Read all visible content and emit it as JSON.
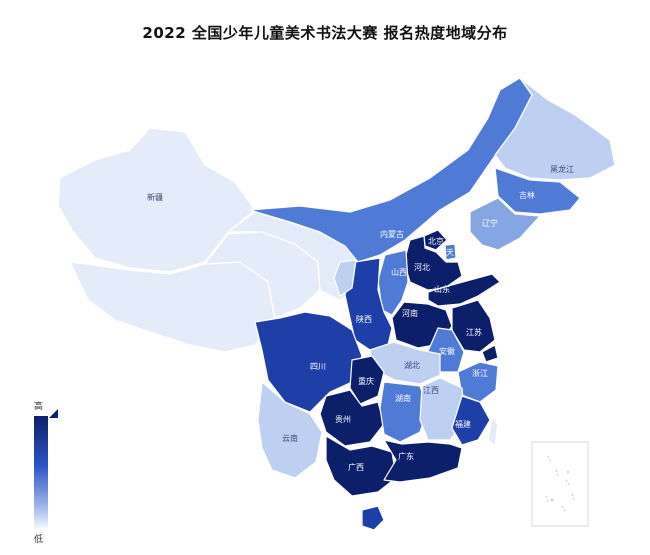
{
  "title": "2022 全国少年儿童美术书法大赛 报名热度地域分布",
  "legend": {
    "high": "高",
    "low": "低"
  },
  "colors": {
    "level1": "#0b1f6b",
    "level2": "#1f3fa8",
    "level3": "#4f7ad6",
    "level4": "#86a6e3",
    "level5": "#bdd0f2",
    "level6": "#e4ecfa",
    "border": "#ffffff"
  },
  "provinces": [
    {
      "id": "xinjiang",
      "label": "新疆",
      "level": 6
    },
    {
      "id": "xizang",
      "label": "",
      "level": 6
    },
    {
      "id": "qinghai",
      "label": "",
      "level": 6
    },
    {
      "id": "gansu",
      "label": "",
      "level": 6
    },
    {
      "id": "neimenggu",
      "label": "内蒙古",
      "level": 3
    },
    {
      "id": "heilongjiang",
      "label": "黑龙江",
      "level": 5
    },
    {
      "id": "jilin",
      "label": "吉林",
      "level": 3
    },
    {
      "id": "liaoning",
      "label": "辽宁",
      "level": 4
    },
    {
      "id": "beijing",
      "label": "北京",
      "level": 1
    },
    {
      "id": "tianjin",
      "label": "天",
      "level": 3
    },
    {
      "id": "hebei",
      "label": "河北",
      "level": 1
    },
    {
      "id": "shanxi",
      "label": "山西",
      "level": 3
    },
    {
      "id": "shandong",
      "label": "山东",
      "level": 1
    },
    {
      "id": "henan",
      "label": "河南",
      "level": 1
    },
    {
      "id": "shaanxi",
      "label": "陕西",
      "level": 2
    },
    {
      "id": "ningxia",
      "label": "",
      "level": 5
    },
    {
      "id": "jiangsu",
      "label": "江苏",
      "level": 1
    },
    {
      "id": "anhui",
      "label": "安徽",
      "level": 3
    },
    {
      "id": "shanghai",
      "label": "",
      "level": 1
    },
    {
      "id": "zhejiang",
      "label": "浙江",
      "level": 3
    },
    {
      "id": "hubei",
      "label": "湖北",
      "level": 5
    },
    {
      "id": "sichuan",
      "label": "四川",
      "level": 2
    },
    {
      "id": "chongqing",
      "label": "重庆",
      "level": 1
    },
    {
      "id": "guizhou",
      "label": "贵州",
      "level": 1
    },
    {
      "id": "hunan",
      "label": "湖南",
      "level": 3
    },
    {
      "id": "jiangxi",
      "label": "江西",
      "level": 5
    },
    {
      "id": "fujian",
      "label": "福建",
      "level": 2
    },
    {
      "id": "yunnan",
      "label": "云南",
      "level": 5
    },
    {
      "id": "guangxi",
      "label": "广西",
      "level": 1
    },
    {
      "id": "guangdong",
      "label": "广东",
      "level": 1
    },
    {
      "id": "hainan",
      "label": "",
      "level": 2
    },
    {
      "id": "taiwan",
      "label": "",
      "level": 6
    }
  ]
}
